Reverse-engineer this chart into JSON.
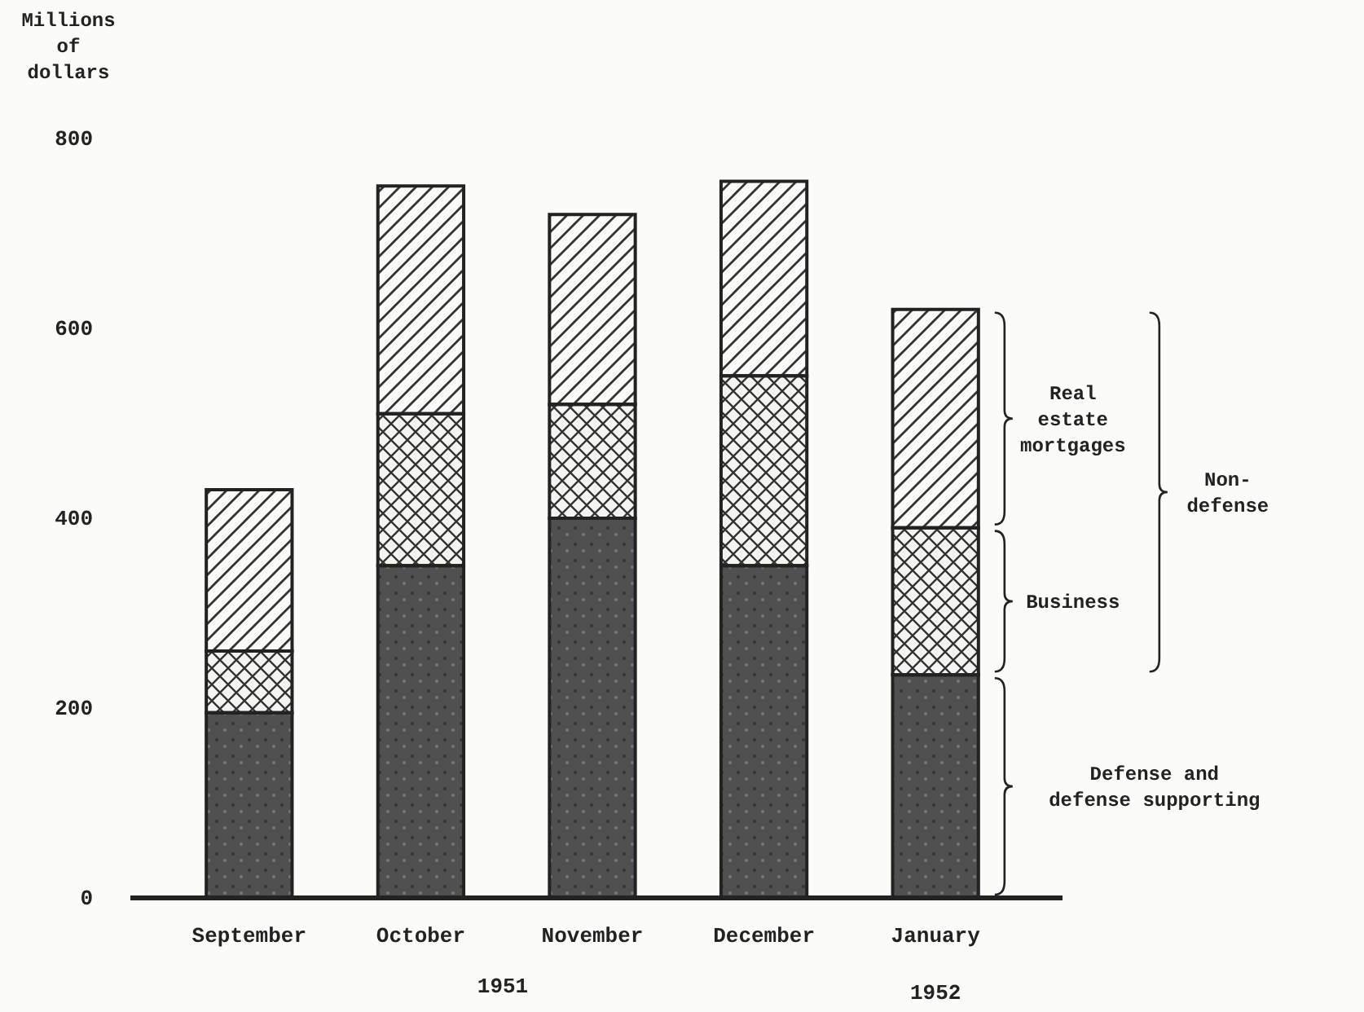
{
  "chart_data": {
    "type": "bar",
    "stacked": true,
    "ylabel": "Millions of dollars",
    "categories": [
      "September",
      "October",
      "November",
      "December",
      "January"
    ],
    "series": [
      {
        "name": "Defense and defense supporting",
        "color": "#505050",
        "values": [
          195,
          350,
          400,
          350,
          235
        ]
      },
      {
        "name": "Business",
        "color": "#f4f4f0",
        "values": [
          65,
          160,
          120,
          200,
          155
        ]
      },
      {
        "name": "Real estate mortgages",
        "color": "#fafaf6",
        "values": [
          170,
          240,
          200,
          205,
          230
        ]
      }
    ],
    "ylim": [
      0,
      800
    ],
    "yticks": [
      0,
      200,
      400,
      600,
      800
    ],
    "annotations": [
      "Non-defense",
      "1951",
      "1952"
    ]
  }
}
